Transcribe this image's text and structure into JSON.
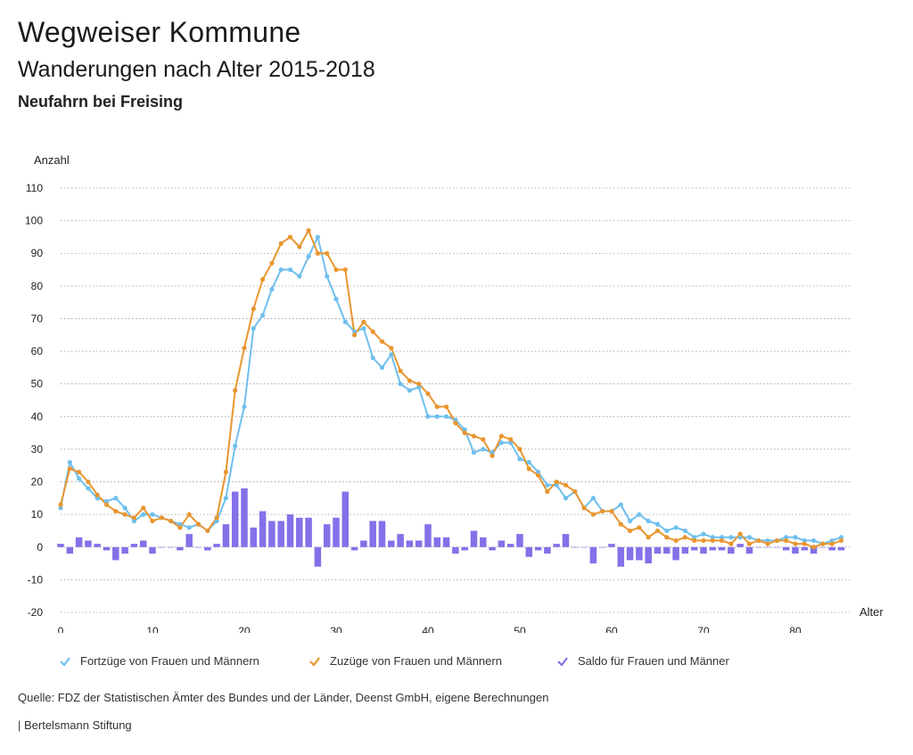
{
  "header": {
    "title": "Wegweiser Kommune",
    "subtitle": "Wanderungen nach Alter 2015-2018",
    "location": "Neufahrn bei Freising"
  },
  "chart_data": {
    "type": "line",
    "ylabel": "Anzahl",
    "xlabel": "Alter",
    "ylim": [
      -20,
      110
    ],
    "xlim": [
      0,
      86
    ],
    "y_ticks": [
      110,
      100,
      90,
      80,
      70,
      60,
      50,
      40,
      30,
      20,
      10,
      0,
      -10,
      -20
    ],
    "x_ticks": [
      0,
      10,
      20,
      30,
      40,
      50,
      60,
      70,
      80
    ],
    "grid": "horizontal dotted",
    "series": [
      {
        "name": "Fortzüge von Frauen und Männern",
        "type": "line",
        "color": "#6fbfee",
        "values": [
          12,
          26,
          21,
          18,
          15,
          14,
          15,
          12,
          8,
          10,
          10,
          9,
          8,
          7,
          6,
          7,
          5,
          8,
          15,
          31,
          43,
          67,
          71,
          79,
          85,
          85,
          83,
          89,
          95,
          83,
          76,
          69,
          66,
          67,
          58,
          55,
          59,
          50,
          48,
          49,
          40,
          40,
          40,
          39,
          36,
          29,
          30,
          29,
          32,
          32,
          27,
          26,
          23,
          19,
          19,
          15,
          17,
          12,
          15,
          11,
          11,
          13,
          8,
          10,
          8,
          7,
          5,
          6,
          5,
          3,
          4,
          3,
          3,
          3,
          3,
          3,
          2,
          2,
          2,
          3,
          3,
          2,
          2,
          1,
          2,
          3
        ]
      },
      {
        "name": "Zuzüge von Frauen und Männern",
        "type": "line",
        "color": "#e8962f",
        "values": [
          13,
          24,
          23,
          20,
          16,
          13,
          11,
          10,
          9,
          12,
          8,
          9,
          8,
          6,
          10,
          7,
          5,
          9,
          23,
          48,
          61,
          73,
          82,
          87,
          93,
          95,
          92,
          97,
          90,
          90,
          85,
          85,
          65,
          69,
          66,
          63,
          61,
          54,
          51,
          50,
          47,
          43,
          43,
          38,
          35,
          34,
          33,
          28,
          34,
          33,
          30,
          24,
          22,
          17,
          20,
          19,
          17,
          12,
          10,
          11,
          11,
          7,
          5,
          6,
          3,
          5,
          3,
          2,
          3,
          2,
          2,
          2,
          2,
          1,
          4,
          1,
          2,
          1,
          2,
          2,
          1,
          1,
          0,
          1,
          1,
          2
        ]
      },
      {
        "name": "Saldo für Frauen und Männer",
        "type": "bar",
        "color": "#8470e8",
        "values": [
          1,
          -2,
          3,
          2,
          1,
          -1,
          -4,
          -2,
          1,
          2,
          -2,
          0,
          0,
          -1,
          4,
          0,
          -1,
          1,
          7,
          17,
          18,
          6,
          11,
          8,
          8,
          10,
          9,
          9,
          -6,
          7,
          9,
          17,
          -1,
          2,
          8,
          8,
          2,
          4,
          2,
          2,
          7,
          3,
          3,
          -2,
          -1,
          5,
          3,
          -1,
          2,
          1,
          4,
          -3,
          -1,
          -2,
          1,
          4,
          0,
          0,
          -5,
          0,
          1,
          -6,
          -4,
          -4,
          -5,
          -2,
          -2,
          -4,
          -2,
          -1,
          -2,
          -1,
          -1,
          -2,
          1,
          -2,
          0,
          0,
          0,
          -1,
          -2,
          -1,
          -2,
          0,
          -1,
          -1
        ]
      }
    ]
  },
  "legend": {
    "items": [
      {
        "label": "Fortzüge von Frauen und Männern",
        "color": "#6fbfee"
      },
      {
        "label": "Zuzüge von Frauen und Männern",
        "color": "#e8962f"
      },
      {
        "label": "Saldo für Frauen und Männer",
        "color": "#8470e8"
      }
    ]
  },
  "footer": {
    "source": "Quelle: FDZ der Statistischen Ämter des Bundes und der Länder, Deenst GmbH, eigene Berechnungen",
    "brand": "| Bertelsmann Stiftung"
  }
}
